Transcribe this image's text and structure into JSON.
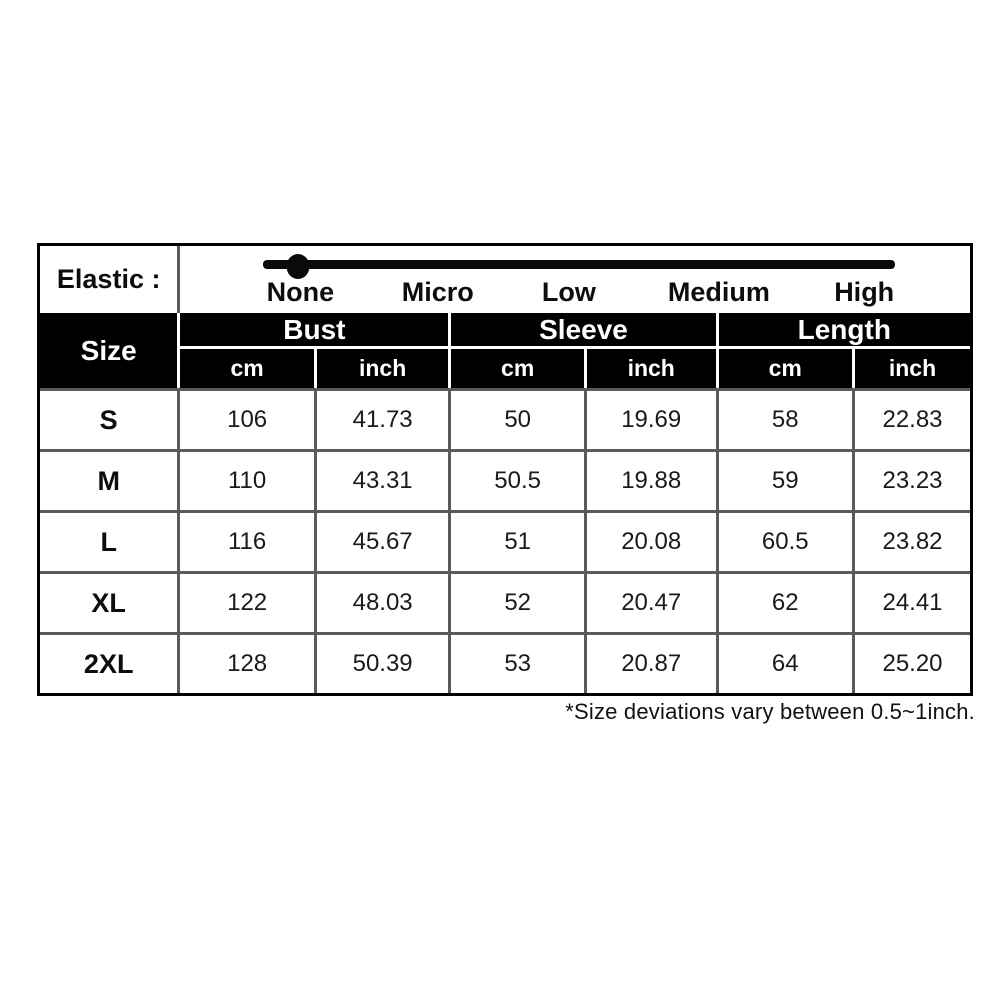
{
  "elastic": {
    "label": "Elastic :",
    "levels": [
      "None",
      "Micro",
      "Low",
      "Medium",
      "High"
    ],
    "selected_level": "None"
  },
  "table": {
    "corner_header": "Size",
    "group_headers": [
      "Bust",
      "Sleeve",
      "Length"
    ],
    "unit_headers": [
      "cm",
      "inch",
      "cm",
      "inch",
      "cm",
      "inch"
    ],
    "rows": [
      {
        "size": "S",
        "bust_cm": "106",
        "bust_inch": "41.73",
        "sleeve_cm": "50",
        "sleeve_inch": "19.69",
        "length_cm": "58",
        "length_inch": "22.83"
      },
      {
        "size": "M",
        "bust_cm": "110",
        "bust_inch": "43.31",
        "sleeve_cm": "50.5",
        "sleeve_inch": "19.88",
        "length_cm": "59",
        "length_inch": "23.23"
      },
      {
        "size": "L",
        "bust_cm": "116",
        "bust_inch": "45.67",
        "sleeve_cm": "51",
        "sleeve_inch": "20.08",
        "length_cm": "60.5",
        "length_inch": "23.82"
      },
      {
        "size": "XL",
        "bust_cm": "122",
        "bust_inch": "48.03",
        "sleeve_cm": "52",
        "sleeve_inch": "20.47",
        "length_cm": "62",
        "length_inch": "24.41"
      },
      {
        "size": "2XL",
        "bust_cm": "128",
        "bust_inch": "50.39",
        "sleeve_cm": "53",
        "sleeve_inch": "20.87",
        "length_cm": "64",
        "length_inch": "25.20"
      }
    ]
  },
  "note": "*Size deviations vary between 0.5~1inch.",
  "colors": {
    "header_bg": "#000000",
    "header_text": "#ffffff",
    "grid_line": "#5a5a5a",
    "body_text": "#1a1a1a",
    "slider": "#0a0a0a"
  },
  "chart_data": {
    "type": "table",
    "title": "Garment size chart",
    "columns": [
      "Size",
      "Bust cm",
      "Bust inch",
      "Sleeve cm",
      "Sleeve inch",
      "Length cm",
      "Length inch"
    ],
    "rows": [
      [
        "S",
        106,
        41.73,
        50,
        19.69,
        58,
        22.83
      ],
      [
        "M",
        110,
        43.31,
        50.5,
        19.88,
        59,
        23.23
      ],
      [
        "L",
        116,
        45.67,
        51,
        20.08,
        60.5,
        23.82
      ],
      [
        "XL",
        122,
        48.03,
        52,
        20.47,
        62,
        24.41
      ],
      [
        "2XL",
        128,
        50.39,
        53,
        20.87,
        64,
        25.2
      ]
    ],
    "elastic_scale": {
      "levels": [
        "None",
        "Micro",
        "Low",
        "Medium",
        "High"
      ],
      "selected": "None"
    },
    "footnote": "*Size deviations vary between 0.5~1inch."
  }
}
